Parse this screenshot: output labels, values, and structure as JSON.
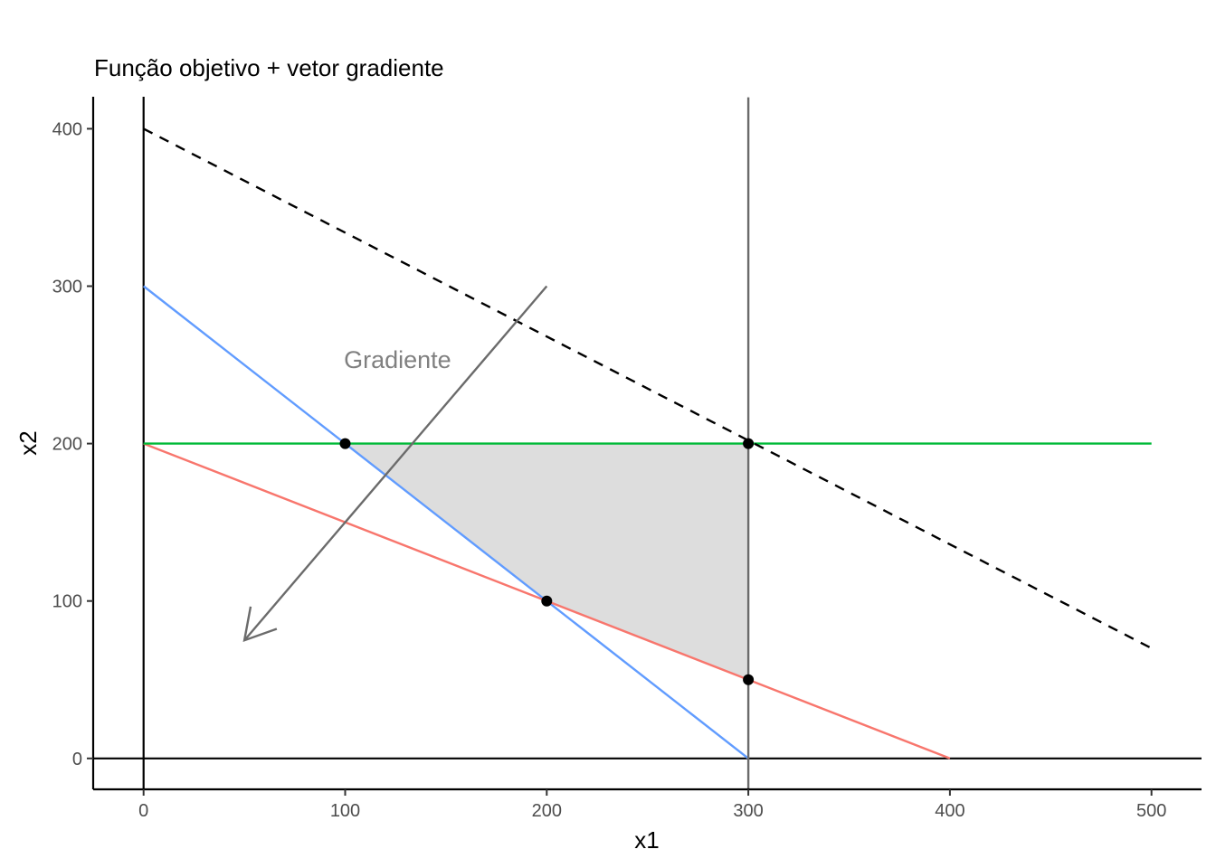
{
  "chart_data": {
    "type": "line",
    "title": "Função objetivo + vetor gradiente",
    "xlabel": "x1",
    "ylabel": "x2",
    "xlim": [
      -25,
      525
    ],
    "ylim": [
      -20,
      420
    ],
    "x_ticks": [
      0,
      100,
      200,
      300,
      400,
      500
    ],
    "y_ticks": [
      0,
      100,
      200,
      300,
      400
    ],
    "grid": false,
    "legend": "none",
    "series": [
      {
        "color": "#619CFF",
        "style": "solid",
        "x": [
          0,
          300
        ],
        "y": [
          300,
          0
        ]
      },
      {
        "color": "#F8766D",
        "style": "solid",
        "x": [
          0,
          400
        ],
        "y": [
          200,
          0
        ]
      },
      {
        "color": "#00BA38",
        "style": "solid",
        "x": [
          0,
          500
        ],
        "y": [
          200,
          200
        ]
      },
      {
        "color": "#6b6b6b",
        "style": "solid",
        "x": [
          300,
          300
        ],
        "y": [
          -20,
          420
        ]
      },
      {
        "color": "#000000",
        "style": "dashed",
        "x": [
          0,
          500
        ],
        "y": [
          400,
          70
        ]
      }
    ],
    "reference_lines": {
      "x0": {
        "color": "#000000",
        "value": 0
      },
      "y0": {
        "color": "#000000",
        "value": 0
      }
    },
    "feasible_region": {
      "fill": "#dddddd",
      "x": [
        100,
        300,
        300,
        200
      ],
      "y": [
        200,
        200,
        50,
        100
      ]
    },
    "points": {
      "color": "#000000",
      "x": [
        100,
        300,
        200,
        300
      ],
      "y": [
        200,
        200,
        100,
        50
      ]
    },
    "gradient_arrow": {
      "color": "#6b6b6b",
      "from": [
        200,
        300
      ],
      "to": [
        50,
        75
      ]
    },
    "annotations": [
      {
        "text": "Gradiente",
        "x": 126,
        "y": 248,
        "color": "#808080"
      }
    ]
  }
}
